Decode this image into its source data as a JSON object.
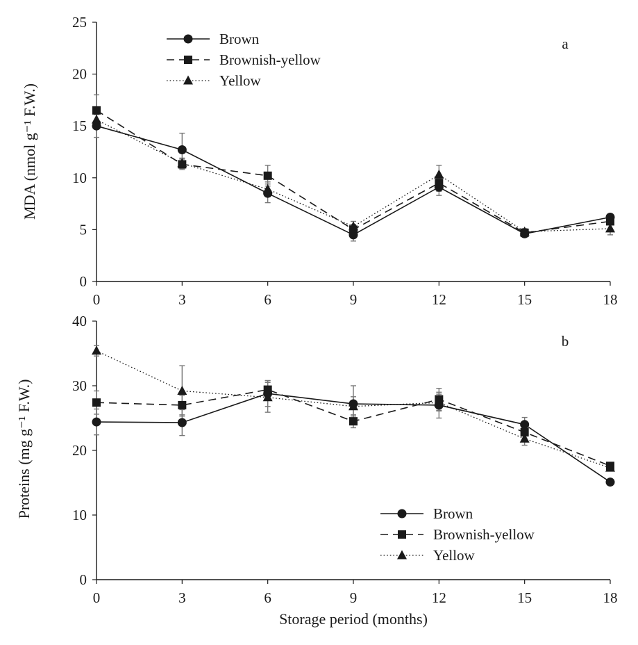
{
  "colors": {
    "ink": "#1a1a1a",
    "errorbar": "#777777",
    "background": "#ffffff"
  },
  "chart_data": [
    {
      "type": "line",
      "panel_letter": "a",
      "ylabel": "MDA (nmol g⁻¹ F.W.)",
      "xlabel": "",
      "x": [
        0,
        3,
        6,
        9,
        12,
        15,
        18
      ],
      "xlim": [
        0,
        18
      ],
      "ylim": [
        0,
        25
      ],
      "yticks": [
        0,
        5,
        10,
        15,
        20,
        25
      ],
      "grid": false,
      "legend_position": "top-left",
      "series": [
        {
          "name": "Brown",
          "marker": "circle",
          "line": "solid",
          "values": [
            15.0,
            12.7,
            8.5,
            4.5,
            9.1,
            4.6,
            6.2
          ],
          "errors": [
            1.1,
            1.6,
            0.9,
            0.6,
            0.8,
            0.3,
            0.3
          ]
        },
        {
          "name": "Brownish-yellow",
          "marker": "square",
          "line": "dashed",
          "values": [
            16.5,
            11.3,
            10.2,
            5.0,
            9.5,
            4.7,
            5.8
          ],
          "errors": [
            1.5,
            0.5,
            1.0,
            0.5,
            0.8,
            0.3,
            0.3
          ]
        },
        {
          "name": "Yellow",
          "marker": "triangle",
          "line": "dotted",
          "values": [
            15.6,
            11.4,
            8.9,
            5.3,
            10.3,
            4.8,
            5.1
          ],
          "errors": [
            0.9,
            0.5,
            0.7,
            0.5,
            0.9,
            0.3,
            0.6
          ]
        }
      ]
    },
    {
      "type": "line",
      "panel_letter": "b",
      "ylabel": "Proteins (mg g⁻¹  F.W.)",
      "xlabel": "Storage period (months)",
      "x": [
        0,
        3,
        6,
        9,
        12,
        15,
        18
      ],
      "xlim": [
        0,
        18
      ],
      "ylim": [
        0,
        40
      ],
      "yticks": [
        0,
        10,
        20,
        30,
        40
      ],
      "grid": false,
      "legend_position": "bottom-right",
      "series": [
        {
          "name": "Brown",
          "marker": "circle",
          "line": "solid",
          "values": [
            24.4,
            24.3,
            28.8,
            27.2,
            27.0,
            24.0,
            15.1
          ],
          "errors": [
            2.0,
            2.0,
            2.0,
            2.8,
            2.0,
            1.1,
            0.4
          ]
        },
        {
          "name": "Brownish-yellow",
          "marker": "square",
          "line": "dashed",
          "values": [
            27.4,
            27.0,
            29.4,
            24.5,
            27.9,
            22.8,
            17.6
          ],
          "errors": [
            1.8,
            1.5,
            1.4,
            1.0,
            1.7,
            1.0,
            0.5
          ]
        },
        {
          "name": "Yellow",
          "marker": "triangle",
          "line": "dotted",
          "values": [
            35.4,
            29.2,
            28.2,
            26.8,
            27.4,
            21.8,
            17.3
          ],
          "errors": [
            0.8,
            3.9,
            2.3,
            1.5,
            1.3,
            1.0,
            0.5
          ]
        }
      ]
    }
  ]
}
